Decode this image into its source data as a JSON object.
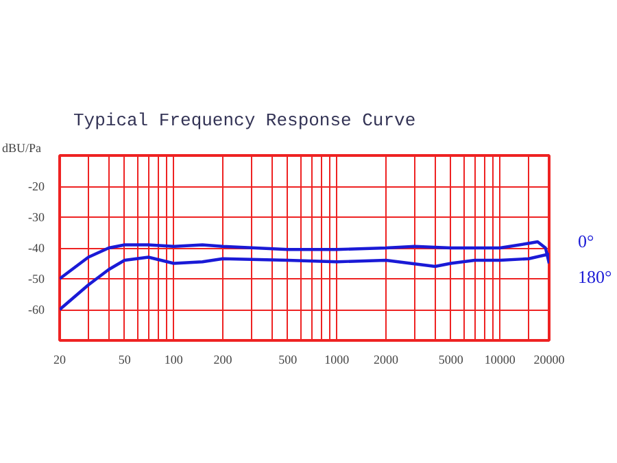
{
  "chart_data": {
    "type": "line",
    "title": "Typical Frequency Response Curve",
    "ylabel": "dBU/Pa",
    "log": "x",
    "xlim": [
      20,
      20000
    ],
    "ylim": [
      -70,
      -10
    ],
    "xticks": [
      20,
      {
        "value": 30,
        "label": null
      },
      {
        "value": 40,
        "label": null
      },
      50,
      {
        "value": 60,
        "label": null
      },
      {
        "value": 70,
        "label": null
      },
      {
        "value": 80,
        "label": null
      },
      {
        "value": 90,
        "label": null
      },
      100,
      200,
      {
        "value": 300,
        "label": null
      },
      {
        "value": 400,
        "label": null
      },
      500,
      {
        "value": 600,
        "label": null
      },
      {
        "value": 700,
        "label": null
      },
      {
        "value": 800,
        "label": null
      },
      {
        "value": 900,
        "label": null
      },
      1000,
      2000,
      {
        "value": 3000,
        "label": null
      },
      {
        "value": 4000,
        "label": null
      },
      5000,
      {
        "value": 6000,
        "label": null
      },
      {
        "value": 7000,
        "label": null
      },
      {
        "value": 8000,
        "label": null
      },
      {
        "value": 9000,
        "label": null
      },
      10000,
      {
        "value": 15000,
        "label": null
      },
      20000
    ],
    "yticks": [
      -20,
      -30,
      -40,
      -50,
      -60
    ],
    "grid": true,
    "legend": false,
    "marker": "none",
    "line_style": "solid",
    "series": [
      {
        "name": "0°",
        "color": "#1a1ad6",
        "x": [
          20,
          30,
          40,
          50,
          70,
          100,
          150,
          200,
          500,
          1000,
          2000,
          3000,
          5000,
          10000,
          15000,
          17000,
          19000,
          20000
        ],
        "values": [
          -50,
          -43,
          -40,
          -39,
          -39,
          -39.5,
          -39,
          -39.5,
          -40.5,
          -40.5,
          -40,
          -39.5,
          -40,
          -40,
          -38.5,
          -38,
          -40,
          -45
        ]
      },
      {
        "name": "180°",
        "color": "#1a1ad6",
        "x": [
          20,
          30,
          40,
          50,
          70,
          100,
          150,
          200,
          500,
          1000,
          2000,
          4000,
          5000,
          7000,
          10000,
          15000,
          20000
        ],
        "values": [
          -60,
          -52,
          -47,
          -44,
          -43,
          -45,
          -44.5,
          -43.5,
          -44,
          -44.5,
          -44,
          -46,
          -45,
          -44,
          -44,
          -43.5,
          -42
        ]
      }
    ]
  }
}
